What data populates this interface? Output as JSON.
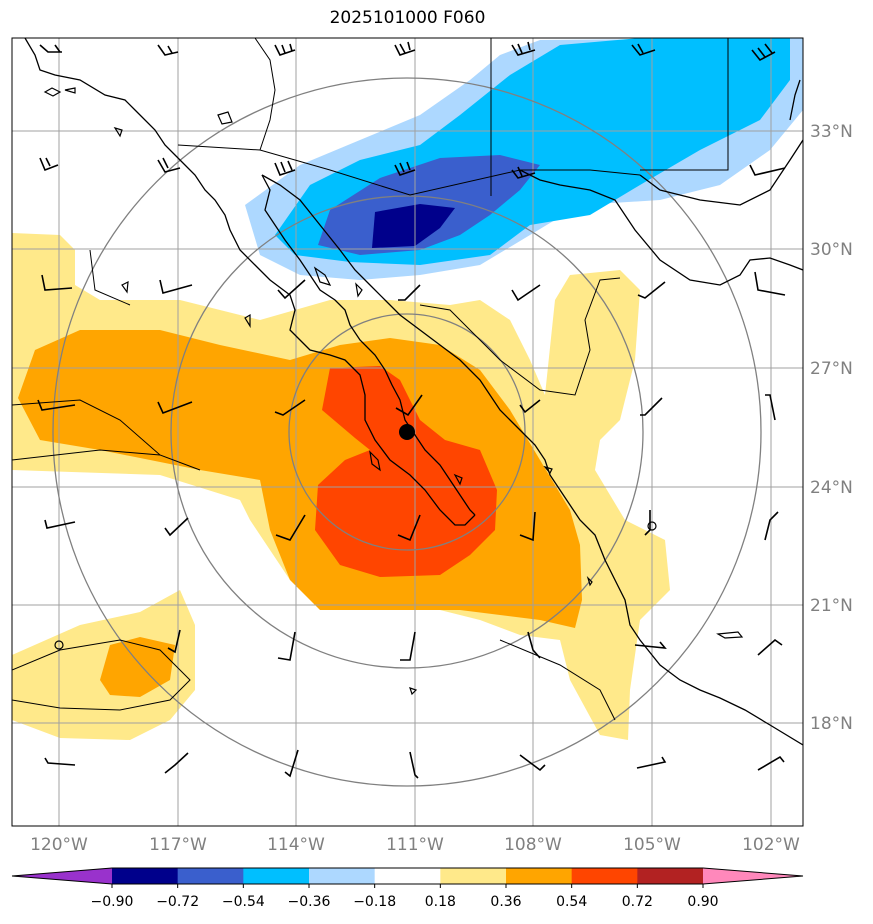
{
  "title": "2025101000 F060",
  "lat_labels": [
    "33°N",
    "30°N",
    "27°N",
    "24°N",
    "21°N",
    "18°N"
  ],
  "lon_labels": [
    "120°W",
    "117°W",
    "114°W",
    "111°W",
    "108°W",
    "105°W",
    "102°W"
  ],
  "colorbar": {
    "ticks": [
      "−0.90",
      "−0.72",
      "−0.54",
      "−0.36",
      "−0.18",
      "0.18",
      "0.36",
      "0.54",
      "0.72",
      "0.90"
    ],
    "colors": [
      "#9932cc",
      "#00008b",
      "#3a5fcd",
      "#00bfff",
      "#add8ff",
      "#ffffff",
      "#ffe98a",
      "#ffa500",
      "#ff4500",
      "#b22222",
      "#ff88bb"
    ]
  },
  "map": {
    "region": "Baja California / NW Mexico",
    "field_levels": {
      "neg": [
        "#add8ff",
        "#00bfff",
        "#3a5fcd",
        "#00008b"
      ],
      "pos": [
        "#ffe98a",
        "#ffa500",
        "#ff4500"
      ]
    },
    "storm_center_marker": "filled-circle",
    "range_rings": 3,
    "grid": true
  }
}
